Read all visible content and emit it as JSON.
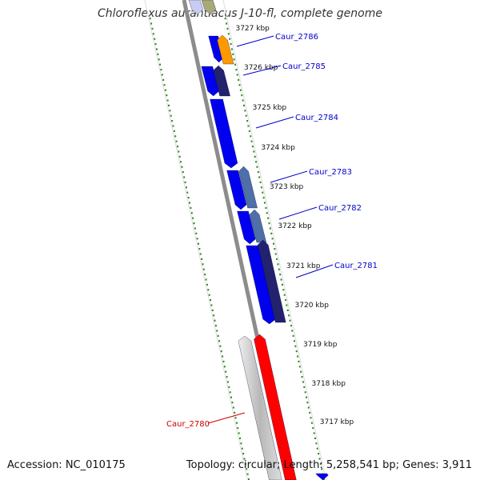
{
  "title": "Chloroflexus aurantiacus J-10-fl, complete genome",
  "footer": {
    "accession": "Accession: NC_010175",
    "topology": "Topology: circular; Length: 5,258,541 bp; Genes: 3,911"
  },
  "colors": {
    "background": "#ffffff",
    "backbone": "#8c8c8c",
    "tick_green": "#2e8b1e",
    "gene_blue": "#0000ee",
    "gene_navy": "#22226e",
    "gene_steel": "#4e6fa8",
    "gene_orange": "#ff9900",
    "gene_red": "#ff0000",
    "gene_gray": "#c8c8c8",
    "gene_olive": "#a8a87a",
    "label_blue": "#0000cc",
    "label_red": "#cc0000"
  },
  "scale": {
    "unit": "kbp",
    "ticks": [
      "3727 kbp",
      "3726 kbp",
      "3725 kbp",
      "3724 kbp",
      "3723 kbp",
      "3722 kbp",
      "3721 kbp",
      "3720 kbp",
      "3719 kbp",
      "3718 kbp",
      "3717 kbp"
    ]
  },
  "genes": [
    {
      "label": "Caur_2786",
      "color": "gene_orange",
      "label_color": "label_blue"
    },
    {
      "label": "Caur_2785",
      "color": "gene_navy",
      "label_color": "label_blue"
    },
    {
      "label": "Caur_2784",
      "color": "gene_blue",
      "label_color": "label_blue"
    },
    {
      "label": "Caur_2783",
      "color": "gene_steel",
      "label_color": "label_blue"
    },
    {
      "label": "Caur_2782",
      "color": "gene_steel",
      "label_color": "label_blue"
    },
    {
      "label": "Caur_2781",
      "color": "gene_navy",
      "label_color": "label_blue"
    },
    {
      "label": "Caur_2780",
      "color": "gene_red",
      "label_color": "label_red"
    }
  ]
}
